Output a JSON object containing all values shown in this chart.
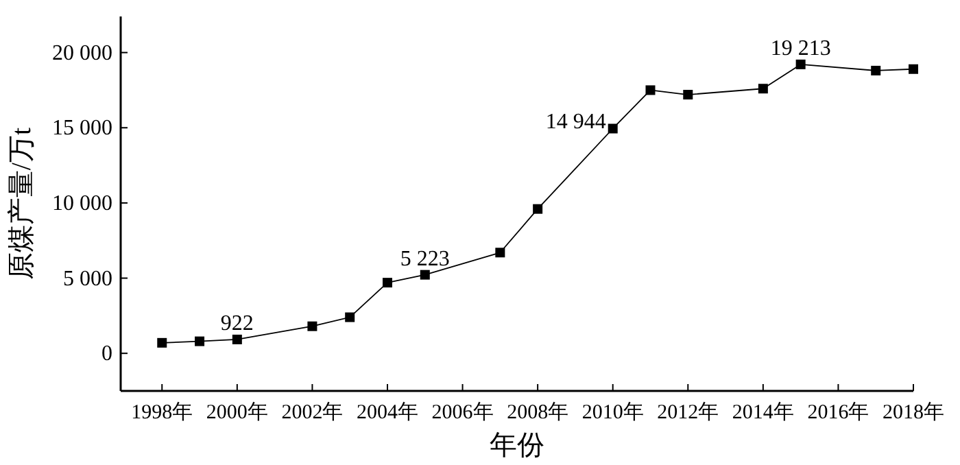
{
  "chart_data": {
    "type": "line",
    "xlabel": "年份",
    "ylabel": "原煤产量/万t",
    "x": [
      1998,
      1999,
      2000,
      2002,
      2003,
      2004,
      2005,
      2007,
      2008,
      2010,
      2011,
      2012,
      2014,
      2015,
      2017,
      2018
    ],
    "series": [
      {
        "color": "#000000",
        "marker": "square",
        "line_style": "solid",
        "values": [
          700,
          800,
          922,
          1800,
          2400,
          4700,
          5223,
          6700,
          9600,
          14944,
          17500,
          17200,
          17600,
          19213,
          18800,
          18900
        ],
        "value_labels": [
          null,
          null,
          "922",
          null,
          null,
          null,
          "5 223",
          null,
          null,
          "14 944",
          null,
          null,
          null,
          "19 213",
          null,
          null
        ]
      }
    ],
    "xlim": [
      1996.9,
      2018
    ],
    "xticks": [
      {
        "value": 1998,
        "label": "1998年"
      },
      {
        "value": 2000,
        "label": "2000年"
      },
      {
        "value": 2002,
        "label": "2002年"
      },
      {
        "value": 2004,
        "label": "2004年"
      },
      {
        "value": 2006,
        "label": "2006年"
      },
      {
        "value": 2008,
        "label": "2008年"
      },
      {
        "value": 2010,
        "label": "2010年"
      },
      {
        "value": 2012,
        "label": "2012年"
      },
      {
        "value": 2014,
        "label": "2014年"
      },
      {
        "value": 2016,
        "label": "2016年"
      },
      {
        "value": 2018,
        "label": "2018年"
      }
    ],
    "ylim": [
      -2500,
      22400
    ],
    "yticks": [
      0,
      {
        "value": 5000,
        "label": "5 000"
      },
      {
        "value": 10000,
        "label": "10 000"
      },
      {
        "value": 15000,
        "label": "15 000"
      },
      {
        "value": 20000,
        "label": "20 000"
      }
    ],
    "tick_labels": true
  }
}
